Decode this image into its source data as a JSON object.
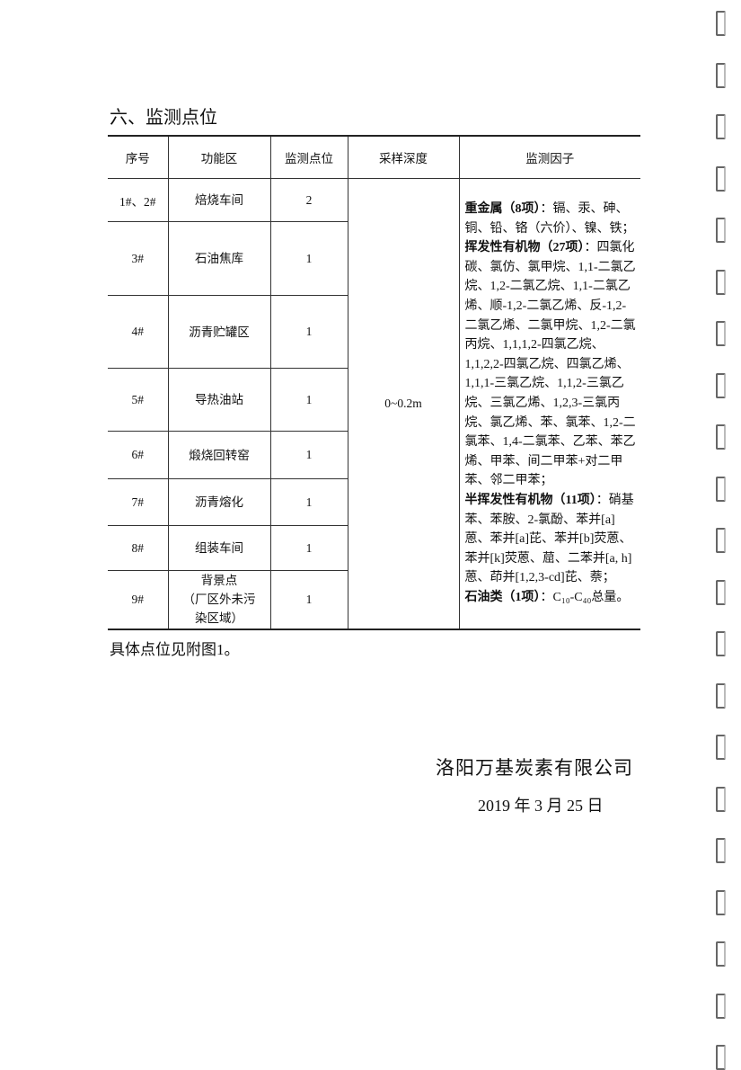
{
  "section": {
    "title": "六、监测点位"
  },
  "table": {
    "headers": [
      "序号",
      "功能区",
      "监测点位",
      "采样深度",
      "监测因子"
    ],
    "rows": [
      [
        "1#、2#",
        "焙烧车间",
        "2"
      ],
      [
        "3#",
        "石油焦库",
        "1"
      ],
      [
        "4#",
        "沥青贮罐区",
        "1"
      ],
      [
        "5#",
        "导热油站",
        "1"
      ],
      [
        "6#",
        "煅烧回转窑",
        "1"
      ],
      [
        "7#",
        "沥青熔化",
        "1"
      ],
      [
        "8#",
        "组装车间",
        "1"
      ],
      [
        "9#",
        "背景点\n（厂区外未污\n染区域）",
        "1"
      ]
    ],
    "depth": "0~0.2m",
    "factors": [
      {
        "label": "重金属（8项）",
        "text": "：镉、汞、砷、铜、铅、铬（六价）、镍、铁；"
      },
      {
        "label": "挥发性有机物（27项）",
        "text": "：四氯化碳、氯仿、氯甲烷、1,1-二氯乙烷、1,2-二氯乙烷、1,1-二氯乙烯、顺-1,2-二氯乙烯、反-1,2-二氯乙烯、二氯甲烷、1,2-二氯丙烷、1,1,1,2-四氯乙烷、1,1,2,2-四氯乙烷、四氯乙烯、1,1,1-三氯乙烷、1,1,2-三氯乙烷、三氯乙烯、1,2,3-三氯丙烷、氯乙烯、苯、氯苯、1,2-二氯苯、1,4-二氯苯、乙苯、苯乙烯、甲苯、间二甲苯+对二甲苯、邻二甲苯；"
      },
      {
        "label": "半挥发性有机物（11项）",
        "text": "：硝基苯、苯胺、2-氯酚、苯并[a]蒽、苯并[a]芘、苯并[b]荧蒽、苯并[k]荧蒽、䓛、二苯并[a, h]蒽、茚并[1,2,3-cd]芘、萘；"
      },
      {
        "label": "石油类（1项）",
        "text": "：C₁₀-C₄₀总量。"
      }
    ]
  },
  "note": "具体点位见附图1。",
  "signature": {
    "company": "洛阳万基炭素有限公司",
    "date": "2019 年 3 月 25 日"
  }
}
